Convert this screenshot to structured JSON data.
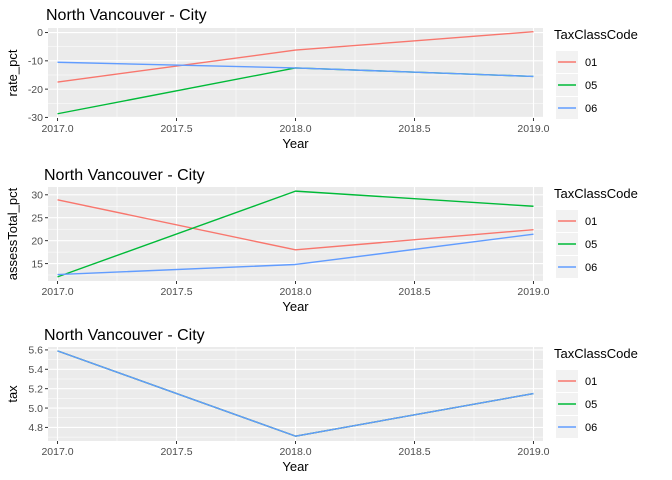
{
  "chart_data": [
    {
      "type": "line",
      "title": "North Vancouver - City",
      "xlabel": "Year",
      "ylabel": "rate_pct",
      "x": [
        2017,
        2018,
        2019
      ],
      "xticks": [
        "2017.0",
        "2017.5",
        "2018.0",
        "2018.5",
        "2019.0"
      ],
      "xlim": [
        2016.96,
        2019.04
      ],
      "yticks": [
        "-30",
        "-20",
        "-10",
        "0"
      ],
      "ylim": [
        -30.2,
        1.6
      ],
      "legend_title": "TaxClassCode",
      "legend_position": "right",
      "grid": true,
      "series": [
        {
          "name": "01",
          "color": "#F8766D",
          "values": [
            -17.5,
            -6.2,
            0.3
          ]
        },
        {
          "name": "05",
          "color": "#00BA38",
          "values": [
            -28.7,
            -12.5,
            -15.5
          ]
        },
        {
          "name": "06",
          "color": "#619CFF",
          "values": [
            -10.5,
            -12.5,
            -15.5
          ]
        }
      ]
    },
    {
      "type": "line",
      "title": "North Vancouver - City",
      "xlabel": "Year",
      "ylabel": "assessTotal_pct",
      "x": [
        2017,
        2018,
        2019
      ],
      "xticks": [
        "2017.0",
        "2017.5",
        "2018.0",
        "2018.5",
        "2019.0"
      ],
      "xlim": [
        2016.96,
        2019.04
      ],
      "yticks": [
        "15",
        "20",
        "25",
        "30"
      ],
      "ylim": [
        11.2,
        31.7
      ],
      "legend_title": "TaxClassCode",
      "legend_position": "right",
      "grid": true,
      "series": [
        {
          "name": "01",
          "color": "#F8766D",
          "values": [
            28.9,
            18.0,
            22.4
          ]
        },
        {
          "name": "05",
          "color": "#00BA38",
          "values": [
            12.1,
            30.8,
            27.5
          ]
        },
        {
          "name": "06",
          "color": "#619CFF",
          "values": [
            12.6,
            14.8,
            21.4
          ]
        }
      ]
    },
    {
      "type": "line",
      "title": "North Vancouver - City",
      "xlabel": "Year",
      "ylabel": "tax",
      "x": [
        2017,
        2018,
        2019
      ],
      "xticks": [
        "2017.0",
        "2017.5",
        "2018.0",
        "2018.5",
        "2019.0"
      ],
      "xlim": [
        2016.96,
        2019.04
      ],
      "yticks": [
        "4.8",
        "5.0",
        "5.2",
        "5.4",
        "5.6"
      ],
      "ylim": [
        4.66,
        5.63
      ],
      "legend_title": "TaxClassCode",
      "legend_position": "right",
      "grid": true,
      "series": [
        {
          "name": "01",
          "color": "#F8766D",
          "values": [
            5.59,
            4.71,
            5.15
          ]
        },
        {
          "name": "05",
          "color": "#00BA38",
          "values": [
            5.59,
            4.71,
            5.15
          ]
        },
        {
          "name": "06",
          "color": "#619CFF",
          "values": [
            5.59,
            4.71,
            5.15
          ]
        }
      ]
    }
  ]
}
